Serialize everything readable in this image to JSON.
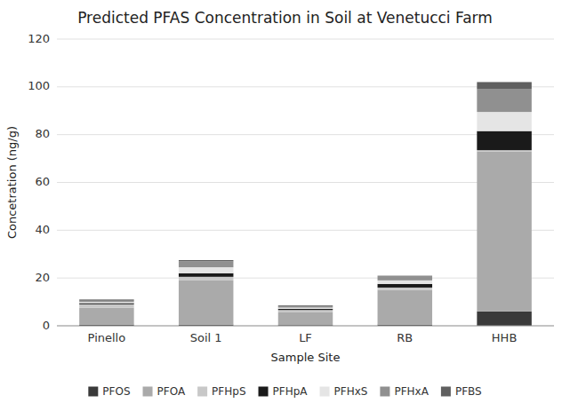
{
  "chart_data": {
    "type": "bar",
    "stacked": true,
    "title": "Predicted PFAS Concentration in Soil at Venetucci Farm",
    "xlabel": "Sample Site",
    "ylabel": "Concetration (ng/g)",
    "categories": [
      "Pinello",
      "Soil 1",
      "LF",
      "RB",
      "HHB"
    ],
    "series": [
      {
        "name": "PFOS",
        "color": "#3a3a3a",
        "values": [
          0.5,
          0.5,
          0.3,
          0.5,
          6.0
        ]
      },
      {
        "name": "PFOA",
        "color": "#aaaaaa",
        "values": [
          7.0,
          18.5,
          5.5,
          14.5,
          67.0
        ]
      },
      {
        "name": "PFHpS",
        "color": "#c8c8c8",
        "values": [
          1.5,
          1.5,
          0.8,
          1.0,
          0.5
        ]
      },
      {
        "name": "PFHpA",
        "color": "#1a1a1a",
        "values": [
          0.5,
          1.5,
          0.5,
          1.5,
          8.0
        ]
      },
      {
        "name": "PFHxS",
        "color": "#e5e5e5",
        "values": [
          0.5,
          2.5,
          0.5,
          1.5,
          8.0
        ]
      },
      {
        "name": "PFHxA",
        "color": "#909090",
        "values": [
          0.5,
          2.5,
          0.5,
          2.0,
          9.5
        ]
      },
      {
        "name": "PFBS",
        "color": "#606060",
        "values": [
          0.5,
          0.5,
          0.4,
          0.0,
          3.0
        ]
      }
    ],
    "ylim": [
      0,
      120
    ],
    "yticks": [
      0,
      20,
      40,
      60,
      80,
      100,
      120
    ],
    "grid": true,
    "legend": "bottom"
  }
}
